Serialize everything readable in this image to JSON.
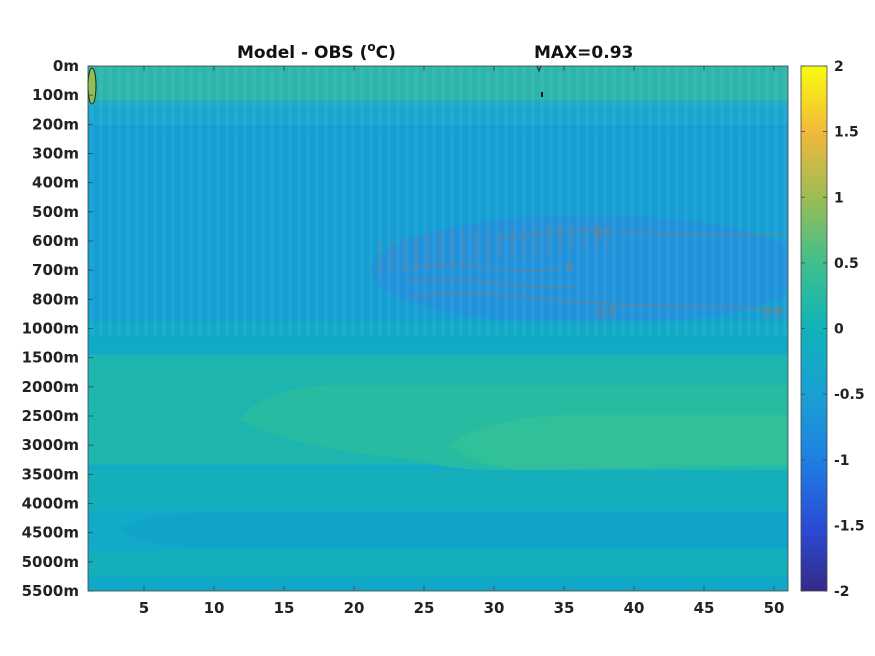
{
  "chart_data": {
    "type": "heatmap",
    "title": "Model - OBS (°C)",
    "title_unit_sup": "o",
    "title_main": "Model - OBS (",
    "title_tail": "C)",
    "annotation": "MAX=0.93",
    "x": {
      "ticks": [
        5,
        10,
        15,
        20,
        25,
        30,
        35,
        40,
        45,
        50
      ],
      "range": [
        1,
        51
      ]
    },
    "y": {
      "ticks": [
        "0m",
        "100m",
        "200m",
        "300m",
        "400m",
        "500m",
        "600m",
        "700m",
        "800m",
        "1000m",
        "1500m",
        "2000m",
        "2500m",
        "3000m",
        "3500m",
        "4000m",
        "4500m",
        "5000m",
        "5500m"
      ]
    },
    "colorbar": {
      "range": [
        -2,
        2
      ],
      "ticks": [
        "2",
        "1.5",
        "1",
        "0.5",
        "0",
        "-0.5",
        "-1",
        "-1.5",
        "-2"
      ]
    },
    "contour_labels": [
      "0",
      "0",
      "0.5",
      "0.5"
    ],
    "grid": false
  }
}
